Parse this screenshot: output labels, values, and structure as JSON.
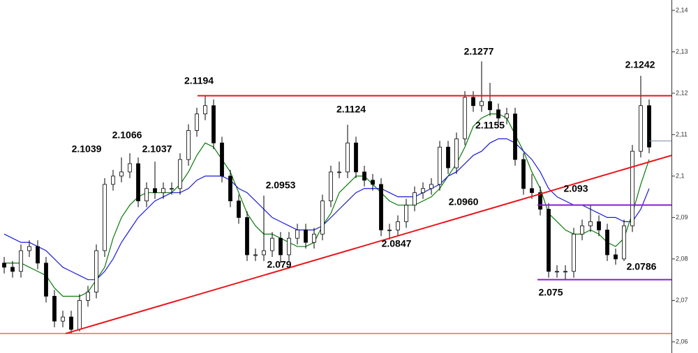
{
  "chart_data": {
    "type": "candlestick",
    "ylim": [
      2.0573,
      2.1425
    ],
    "yticks": [
      {
        "value": 2.06,
        "label": "2,06"
      },
      {
        "value": 2.07,
        "label": "2,07"
      },
      {
        "value": 2.08,
        "label": "2,08"
      },
      {
        "value": 2.09,
        "label": "2,09"
      },
      {
        "value": 2.1,
        "label": "2,1"
      },
      {
        "value": 2.11,
        "label": "2,11"
      },
      {
        "value": 2.12,
        "label": "2,12"
      },
      {
        "value": 2.13,
        "label": "2,13"
      },
      {
        "value": 2.14,
        "label": "2,14"
      }
    ],
    "up_color": "#ffffff",
    "down_color": "#000000",
    "open": [
      2.079,
      2.078,
      2.077,
      2.082,
      2.083,
      2.079,
      2.071,
      2.065,
      2.066,
      2.063,
      2.07,
      2.072,
      2.082,
      2.098,
      2.1,
      2.101,
      2.103,
      2.094,
      2.097,
      2.096,
      2.097,
      2.097,
      2.104,
      2.111,
      2.115,
      2.117,
      2.108,
      2.1,
      2.094,
      2.09,
      2.081,
      2.081,
      2.082,
      2.085,
      2.081,
      2.085,
      2.087,
      2.084,
      2.086,
      2.094,
      2.101,
      2.101,
      2.108,
      2.101,
      2.099,
      2.098,
      2.087,
      2.087,
      2.089,
      2.093,
      2.096,
      2.097,
      2.098,
      2.107,
      2.102,
      2.109,
      2.119,
      2.117,
      2.118,
      2.116,
      2.114,
      2.115,
      2.104,
      2.097,
      2.096,
      2.092,
      2.077,
      2.077,
      2.077,
      2.086,
      2.088,
      2.089,
      2.087,
      2.081,
      2.08,
      2.088,
      2.106,
      2.117
    ],
    "high": [
      2.0805,
      2.0795,
      2.0835,
      2.0845,
      2.0845,
      2.0805,
      2.0725,
      2.0675,
      2.0675,
      2.0715,
      2.0735,
      2.0835,
      2.0995,
      2.1015,
      2.1045,
      2.1055,
      2.1045,
      2.0985,
      2.1035,
      2.0985,
      2.0985,
      2.1055,
      2.1125,
      2.1165,
      2.1194,
      2.1185,
      2.1095,
      2.1015,
      2.0955,
      2.0915,
      2.0825,
      2.0953,
      2.0865,
      2.0865,
      2.0865,
      2.0885,
      2.0885,
      2.0875,
      2.0955,
      2.1025,
      2.1035,
      2.1124,
      2.1095,
      2.1025,
      2.1005,
      2.0995,
      2.0885,
      2.0905,
      2.0945,
      2.0975,
      2.0985,
      2.0995,
      2.1085,
      2.1085,
      2.1105,
      2.1205,
      2.1205,
      2.1277,
      2.1225,
      2.1175,
      2.1165,
      2.1165,
      2.1055,
      2.1005,
      2.0975,
      2.0935,
      2.0785,
      2.0785,
      2.0875,
      2.0895,
      2.093,
      2.0905,
      2.0885,
      2.0825,
      2.0895,
      2.1075,
      2.1242,
      2.1185
    ],
    "low": [
      2.0765,
      2.0755,
      2.0755,
      2.0805,
      2.0775,
      2.0695,
      2.0635,
      2.0635,
      2.062,
      2.0625,
      2.0685,
      2.0705,
      2.0805,
      2.0965,
      2.0985,
      2.0995,
      2.0925,
      2.0925,
      2.0945,
      2.0945,
      2.0955,
      2.0955,
      2.1025,
      2.1095,
      2.1135,
      2.1065,
      2.0985,
      2.0925,
      2.0885,
      2.0795,
      2.0795,
      2.0795,
      2.0805,
      2.079,
      2.0795,
      2.0835,
      2.0825,
      2.0825,
      2.0845,
      2.0925,
      2.0995,
      2.0995,
      2.0995,
      2.0975,
      2.0965,
      2.0855,
      2.0847,
      2.0855,
      2.0875,
      2.0915,
      2.0945,
      2.0955,
      2.0965,
      2.1005,
      2.1005,
      2.1075,
      2.1155,
      2.1155,
      2.1145,
      2.1125,
      2.1125,
      2.1025,
      2.0955,
      2.0945,
      2.0905,
      2.0755,
      2.0755,
      2.075,
      2.0755,
      2.0845,
      2.0865,
      2.0855,
      2.0795,
      2.0786,
      2.0795,
      2.0865,
      2.1045,
      2.1055
    ],
    "close": [
      2.078,
      2.077,
      2.082,
      2.083,
      2.079,
      2.071,
      2.065,
      2.066,
      2.063,
      2.07,
      2.072,
      2.082,
      2.098,
      2.1,
      2.101,
      2.103,
      2.094,
      2.097,
      2.096,
      2.097,
      2.097,
      2.104,
      2.111,
      2.115,
      2.117,
      2.108,
      2.1,
      2.094,
      2.09,
      2.081,
      2.081,
      2.082,
      2.085,
      2.081,
      2.085,
      2.087,
      2.084,
      2.086,
      2.094,
      2.101,
      2.101,
      2.108,
      2.101,
      2.099,
      2.098,
      2.087,
      2.087,
      2.089,
      2.093,
      2.096,
      2.097,
      2.098,
      2.107,
      2.102,
      2.109,
      2.119,
      2.117,
      2.118,
      2.116,
      2.114,
      2.115,
      2.104,
      2.097,
      2.096,
      2.092,
      2.077,
      2.077,
      2.077,
      2.086,
      2.088,
      2.089,
      2.087,
      2.081,
      2.08,
      2.088,
      2.106,
      2.117,
      2.107
    ],
    "series": [
      {
        "color": "#0a7a0a",
        "values": [
          2.079,
          2.079,
          2.079,
          2.078,
          2.077,
          2.076,
          2.073,
          2.071,
          2.071,
          2.071,
          2.072,
          2.075,
          2.078,
          2.085,
          2.09,
          2.093,
          2.095,
          2.096,
          2.096,
          2.096,
          2.096,
          2.098,
          2.101,
          2.105,
          2.108,
          2.107,
          2.104,
          2.101,
          2.096,
          2.091,
          2.088,
          2.086,
          2.086,
          2.085,
          2.084,
          2.083,
          2.083,
          2.084,
          2.088,
          2.091,
          2.096,
          2.098,
          2.1,
          2.1,
          2.098,
          2.096,
          2.094,
          2.093,
          2.093,
          2.093,
          2.094,
          2.095,
          2.097,
          2.1,
          2.103,
          2.107,
          2.112,
          2.114,
          2.115,
          2.115,
          2.114,
          2.11,
          2.106,
          2.101,
          2.097,
          2.091,
          2.089,
          2.087,
          2.086,
          2.086,
          2.087,
          2.086,
          2.084,
          2.083,
          2.085,
          2.091,
          2.098,
          2.104
        ]
      },
      {
        "color": "#1a1adc",
        "values": [
          2.086,
          2.085,
          2.084,
          2.084,
          2.083,
          2.082,
          2.08,
          2.078,
          2.077,
          2.076,
          2.075,
          2.075,
          2.077,
          2.08,
          2.084,
          2.087,
          2.09,
          2.092,
          2.094,
          2.095,
          2.096,
          2.096,
          2.097,
          2.099,
          2.1,
          2.1,
          2.1,
          2.099,
          2.097,
          2.096,
          2.094,
          2.092,
          2.09,
          2.089,
          2.088,
          2.087,
          2.087,
          2.087,
          2.088,
          2.09,
          2.092,
          2.094,
          2.096,
          2.097,
          2.097,
          2.097,
          2.096,
          2.095,
          2.095,
          2.095,
          2.096,
          2.097,
          2.098,
          2.1,
          2.101,
          2.103,
          2.105,
          2.106,
          2.108,
          2.109,
          2.109,
          2.108,
          2.106,
          2.104,
          2.101,
          2.097,
          2.095,
          2.094,
          2.093,
          2.093,
          2.092,
          2.091,
          2.09,
          2.09,
          2.089,
          2.089,
          2.092,
          2.097
        ]
      }
    ],
    "levels": [
      {
        "value": 2.1194,
        "color": "#e8141a"
      },
      {
        "value": 2.093,
        "color": "#8a1ad6"
      },
      {
        "value": 2.075,
        "color": "#8a1ad6"
      },
      {
        "value": 2.062,
        "color": "#e8141a"
      },
      {
        "value": 2.1085,
        "color": "#7a8aa0"
      }
    ],
    "trendline": {
      "values": [
        2.062,
        2.105
      ],
      "color": "#e8141a"
    },
    "annotations": [
      "2.1039",
      "2.1066",
      "2.1037",
      "2.1194",
      "2.0953",
      "2.079",
      "2.1124",
      "2.0847",
      "2.1277",
      "2.1155",
      "2.0960",
      "2.093",
      "2.075",
      "2.0786",
      "2.1242"
    ]
  }
}
